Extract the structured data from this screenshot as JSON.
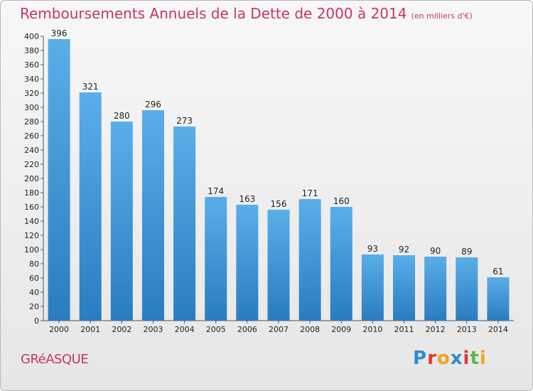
{
  "header": {
    "title": "Remboursements Annuels de la Dette de 2000 à 2014",
    "unit": "(en milliers d'€)"
  },
  "footer": {
    "town": "GRéASQUE",
    "logo_letters": [
      "P",
      "r",
      "o",
      "x",
      "i",
      "t",
      "i"
    ],
    "logo_colors": [
      "#2e8bd6",
      "#e8372c",
      "#f2a51a",
      "#2e8bd6",
      "#e8372c",
      "#57b847",
      "#f2a51a"
    ]
  },
  "chart_data": {
    "type": "bar",
    "title": "Remboursements Annuels de la Dette de 2000 à 2014",
    "ylabel": "en milliers d'€",
    "categories": [
      "2000",
      "2001",
      "2002",
      "2003",
      "2004",
      "2005",
      "2006",
      "2007",
      "2008",
      "2009",
      "2010",
      "2011",
      "2012",
      "2013",
      "2014"
    ],
    "values": [
      396,
      321,
      280,
      296,
      273,
      174,
      163,
      156,
      171,
      160,
      93,
      92,
      90,
      89,
      61
    ],
    "ylim": [
      0,
      400
    ],
    "yticks": [
      0,
      20,
      40,
      60,
      80,
      100,
      120,
      140,
      160,
      180,
      200,
      220,
      240,
      260,
      280,
      300,
      320,
      340,
      360,
      380,
      400
    ],
    "grid": false,
    "bar_color_top": "#5aaee8",
    "bar_color_bottom": "#2a7cc0"
  }
}
